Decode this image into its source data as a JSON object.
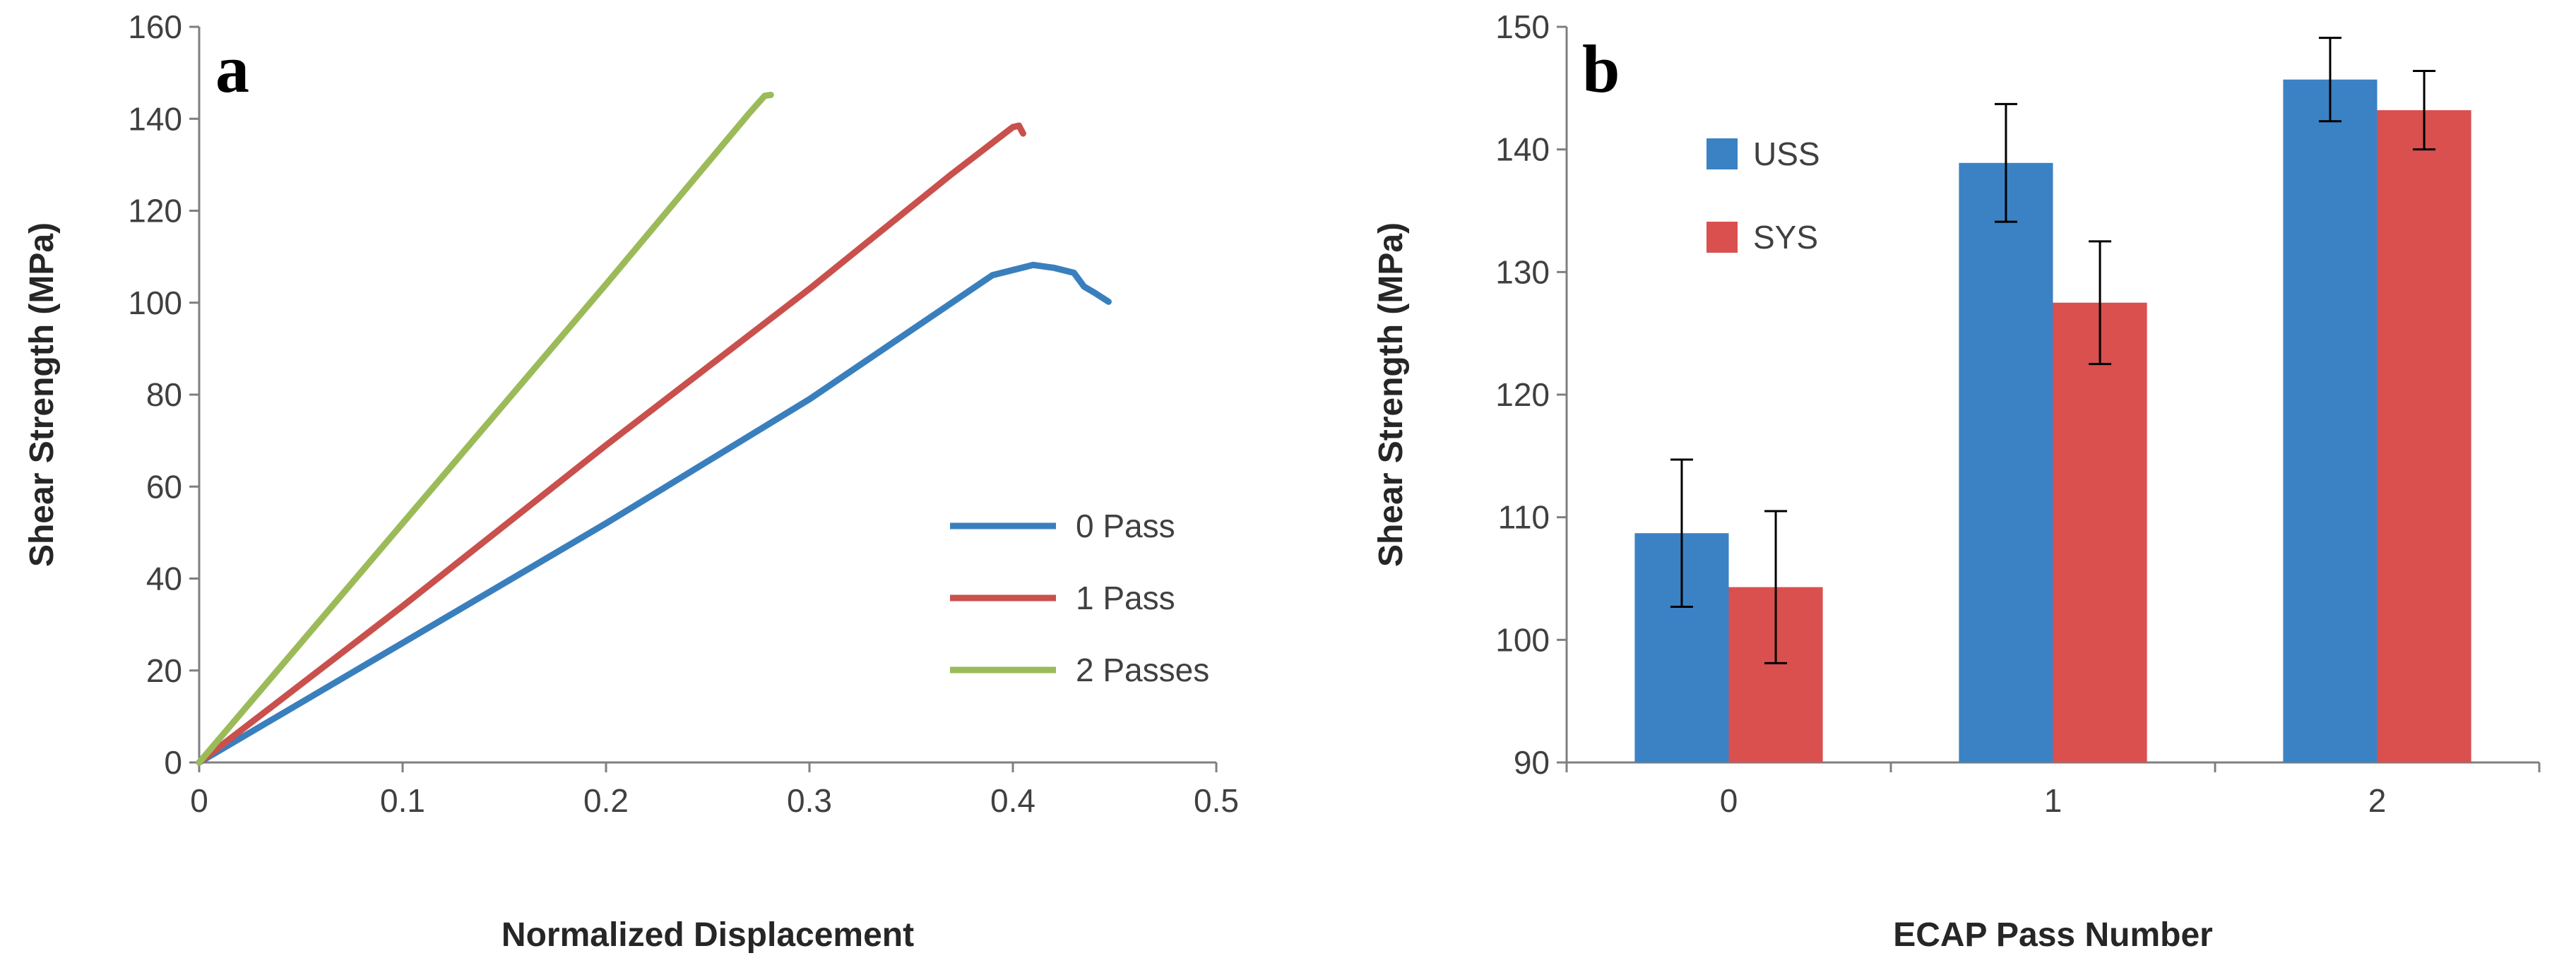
{
  "chart_data": [
    {
      "type": "line",
      "panel_label": "a",
      "xlabel": "Normalized Displacement",
      "ylabel": "Shear Strength (MPa)",
      "xlim": [
        0,
        0.5
      ],
      "ylim": [
        0,
        160
      ],
      "x_ticks": [
        "0",
        "0.1",
        "0.2",
        "0.3",
        "0.4",
        "0.5"
      ],
      "y_ticks": [
        "0",
        "20",
        "40",
        "60",
        "80",
        "100",
        "120",
        "140",
        "160"
      ],
      "legend_position": "right",
      "series": [
        {
          "name": "0 Pass",
          "color": "#3a7fbd",
          "points": [
            [
              0,
              0
            ],
            [
              0.1,
              26
            ],
            [
              0.2,
              52
            ],
            [
              0.3,
              79
            ],
            [
              0.36,
              97
            ],
            [
              0.39,
              106
            ],
            [
              0.41,
              108.2
            ],
            [
              0.42,
              107.6
            ],
            [
              0.43,
              106.5
            ],
            [
              0.435,
              103.5
            ],
            [
              0.44,
              102.2
            ],
            [
              0.447,
              100.2
            ]
          ]
        },
        {
          "name": "1 Pass",
          "color": "#c9504c",
          "points": [
            [
              0,
              0
            ],
            [
              0.1,
              34
            ],
            [
              0.2,
              69
            ],
            [
              0.3,
              103
            ],
            [
              0.37,
              128
            ],
            [
              0.4,
              138.2
            ],
            [
              0.403,
              138.5
            ],
            [
              0.405,
              136.8
            ]
          ]
        },
        {
          "name": "2 Passes",
          "color": "#9bbb59",
          "points": [
            [
              0,
              0
            ],
            [
              0.1,
              52
            ],
            [
              0.2,
              104
            ],
            [
              0.27,
              141
            ],
            [
              0.278,
              145
            ],
            [
              0.281,
              145.2
            ]
          ]
        }
      ]
    },
    {
      "type": "bar",
      "panel_label": "b",
      "xlabel": "ECAP Pass Number",
      "ylabel": "Shear Strength (MPa)",
      "ylim": [
        90,
        150
      ],
      "y_ticks": [
        "90",
        "100",
        "110",
        "120",
        "130",
        "140",
        "150"
      ],
      "categories": [
        "0",
        "1",
        "2"
      ],
      "legend_position": "top-left",
      "series": [
        {
          "name": "USS",
          "color": "#3b82c4",
          "values": [
            108.7,
            138.9,
            145.7
          ],
          "errors": [
            6.0,
            4.8,
            3.4
          ]
        },
        {
          "name": "SYS",
          "color": "#d9504f",
          "values": [
            104.3,
            127.5,
            143.2
          ],
          "errors": [
            6.2,
            5.0,
            3.2
          ]
        }
      ]
    }
  ]
}
